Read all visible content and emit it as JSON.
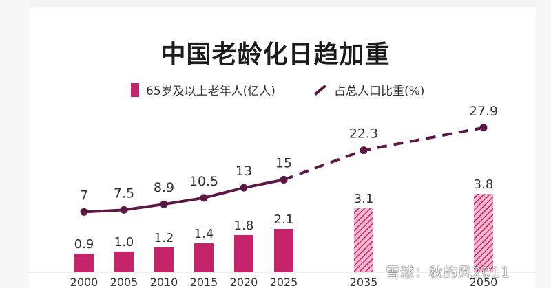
{
  "chart_data": {
    "type": "bar",
    "title": "中国老龄化日趋加重",
    "categories": [
      "2000",
      "2005",
      "2010",
      "2015",
      "2020",
      "2025",
      "2035",
      "2050"
    ],
    "series": [
      {
        "name": "65岁及以上老年人(亿人)",
        "kind": "bar",
        "values": [
          0.9,
          1.0,
          1.2,
          1.4,
          1.8,
          2.1,
          3.1,
          3.8
        ],
        "value_labels": [
          "0.9",
          "1.0",
          "1.2",
          "1.4",
          "1.8",
          "2.1",
          "3.1",
          "3.8"
        ],
        "projected": [
          false,
          false,
          false,
          false,
          false,
          false,
          true,
          true
        ],
        "color": "#c6246a"
      },
      {
        "name": "占总人口比重(%)",
        "kind": "line",
        "values": [
          7,
          7.5,
          8.9,
          10.5,
          13,
          15,
          22.3,
          27.9
        ],
        "value_labels": [
          "7",
          "7.5",
          "8.9",
          "10.5",
          "13",
          "15",
          "22.3",
          "27.9"
        ],
        "projected": [
          false,
          false,
          false,
          false,
          false,
          true,
          true,
          true
        ],
        "color": "#5b1845"
      }
    ],
    "legend_position": "top",
    "grid": false
  },
  "watermark": "雪球：秋的风2011"
}
